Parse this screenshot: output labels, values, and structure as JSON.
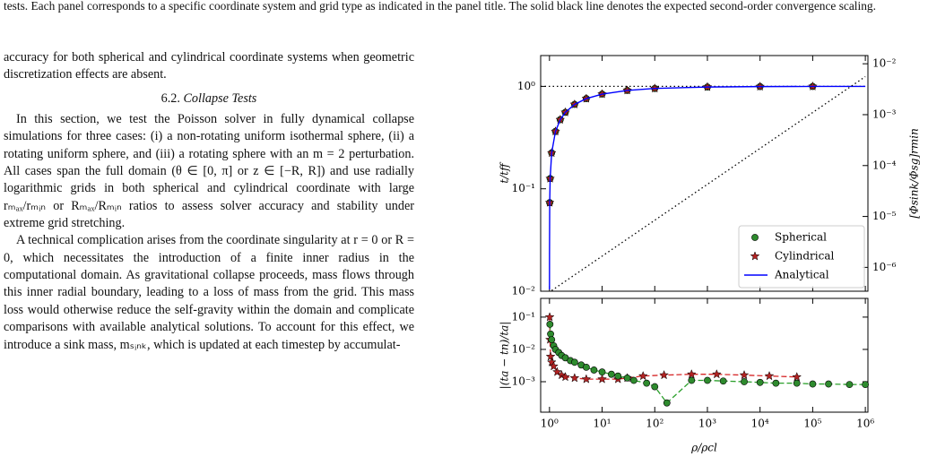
{
  "caption": "tests. Each panel corresponds to a specific coordinate system and grid type as indicated in the panel title. The solid black line denotes the expected second-order convergence scaling.",
  "body": {
    "paragraph_1": "accuracy for both spherical and cylindrical coordinate systems when geometric discretization effects are absent.",
    "heading_number": "6.2.",
    "heading_title": "Collapse Tests",
    "paragraph_2": "In this section, we test the Poisson solver in fully dynamical collapse simulations for three cases: (i) a non-rotating uniform isothermal sphere, (ii) a rotating uniform sphere, and (iii) a rotating sphere with an m = 2 perturbation. All cases span the full domain (θ ∈ [0, π] or z ∈ [−R, R]) and use radially logarithmic grids in both spherical and cylindrical coordinate with large rₘₐₓ/rₘᵢₙ or Rₘₐₓ/Rₘᵢₙ ratios to assess solver accuracy and stability under extreme grid stretching.",
    "paragraph_3": "A technical complication arises from the coordinate singularity at r = 0 or R = 0, which necessitates the introduction of a finite inner radius in the computational domain. As gravitational collapse proceeds, mass flows through this inner radial boundary, leading to a loss of mass from the grid. This mass loss would otherwise reduce the self-gravity within the domain and complicate comparisons with available analytical solutions. To account for this effect, we introduce a sink mass, mₛᵢₙₖ, which is updated at each timestep by accumulat-"
  },
  "chart_data": [
    {
      "type": "line",
      "xscale": "log",
      "yscale": "log",
      "y2scale": "log",
      "ylabel": "t/tff",
      "y2label": "[Φsink/Φsg]rmin",
      "xlim": [
        0.68,
        1120000
      ],
      "ylim": [
        0.01,
        2.0
      ],
      "y2lim": [
        3.4e-07,
        0.0145
      ],
      "xticks": [
        1,
        10,
        100,
        1000,
        10000,
        100000,
        1000000
      ],
      "show_xticklabels": false,
      "yticks": [
        {
          "value": 0.01,
          "label": "10⁻²"
        },
        {
          "value": 0.1,
          "label": "10⁻¹"
        },
        {
          "value": 1,
          "label": "10⁰"
        }
      ],
      "y2ticks": [
        {
          "value": 1e-06,
          "label": "10⁻⁶"
        },
        {
          "value": 1e-05,
          "label": "10⁻⁵"
        },
        {
          "value": 0.0001,
          "label": "10⁻⁴"
        },
        {
          "value": 0.001,
          "label": "10⁻³"
        },
        {
          "value": 0.01,
          "label": "10⁻²"
        }
      ],
      "hlines": [
        {
          "y": 1,
          "color": "#000000",
          "linestyle": "dotted"
        }
      ],
      "legend": "lower right",
      "series": [
        {
          "name": "Spherical",
          "color": "#2e8b2e",
          "marker": "circle",
          "x": [
            1.01,
            1.03,
            1.1,
            1.3,
            1.6,
            2,
            3,
            5,
            10,
            30,
            100,
            1000,
            10000,
            100000
          ],
          "values": [
            0.0732,
            0.1259,
            0.224,
            0.3631,
            0.473,
            0.5578,
            0.6672,
            0.7594,
            0.8405,
            0.9131,
            0.9546,
            0.9857,
            0.9957,
            0.9987
          ]
        },
        {
          "name": "Cylindrical",
          "color": "#b22222",
          "marker": "star",
          "x": [
            1.01,
            1.03,
            1.1,
            1.3,
            1.6,
            2,
            3,
            5,
            10,
            30,
            100,
            1000,
            10000,
            100000
          ],
          "values": [
            0.0732,
            0.1259,
            0.224,
            0.3631,
            0.473,
            0.5578,
            0.6672,
            0.7594,
            0.8405,
            0.9131,
            0.9546,
            0.9857,
            0.9957,
            0.9987
          ]
        },
        {
          "name": "Analytical",
          "color": "#0000ff",
          "linestyle": "solid",
          "x": [
            1.0002,
            1.001,
            1.01,
            1.03,
            1.1,
            1.3,
            1.6,
            2,
            3,
            5,
            10,
            30,
            100,
            1000,
            10000,
            100000,
            1000000
          ],
          "values": [
            0.0104,
            0.02325,
            0.0732,
            0.1259,
            0.224,
            0.3631,
            0.473,
            0.5578,
            0.6672,
            0.7594,
            0.8405,
            0.9131,
            0.9546,
            0.9857,
            0.9957,
            0.9987,
            0.99955
          ]
        },
        {
          "color": "#000000",
          "linestyle": "dotted",
          "axis": "y2",
          "x": [
            1.1,
            1000000
          ],
          "values": [
            3.5e-07,
            0.0056
          ]
        }
      ]
    },
    {
      "type": "line",
      "xscale": "log",
      "yscale": "log",
      "ylabel": "|(ta − tn)/ta|",
      "xlabel": "ρ/ρcl",
      "xlim": [
        0.68,
        1120000
      ],
      "ylim": [
        0.000114,
        0.38
      ],
      "xticks": [
        {
          "value": 1,
          "label": "10⁰"
        },
        {
          "value": 10,
          "label": "10¹"
        },
        {
          "value": 100,
          "label": "10²"
        },
        {
          "value": 1000,
          "label": "10³"
        },
        {
          "value": 10000,
          "label": "10⁴"
        },
        {
          "value": 100000,
          "label": "10⁵"
        },
        {
          "value": 1000000,
          "label": "10⁶"
        }
      ],
      "yticks": [
        {
          "value": 0.001,
          "label": "10⁻³"
        },
        {
          "value": 0.01,
          "label": "10⁻²"
        },
        {
          "value": 0.1,
          "label": "10⁻¹"
        }
      ],
      "series": [
        {
          "name": "Cylindrical",
          "color": "#b22222",
          "line_color": "#d62728",
          "marker": "star",
          "linestyle": "dashed",
          "x": [
            1.01,
            1.02,
            1.05,
            1.1,
            1.2,
            1.4,
            1.7,
            2,
            3,
            5,
            10,
            20,
            30,
            60,
            150,
            500,
            1500,
            5000,
            15000,
            50000
          ],
          "values": [
            0.1,
            0.02,
            0.006,
            0.004,
            0.003,
            0.002,
            0.0016,
            0.0014,
            0.0013,
            0.0012,
            0.0012,
            0.0012,
            0.0013,
            0.0015,
            0.0016,
            0.0017,
            0.0017,
            0.0016,
            0.0015,
            0.0014
          ]
        },
        {
          "name": "Spherical",
          "color": "#2e8b2e",
          "line_color": "#2ca02c",
          "marker": "circle",
          "linestyle": "dashed",
          "x": [
            1.02,
            1.05,
            1.1,
            1.2,
            1.3,
            1.5,
            1.7,
            2,
            2.5,
            3,
            4,
            5,
            7,
            10,
            15,
            20,
            30,
            40,
            70,
            100,
            170,
            500,
            1000,
            2000,
            5000,
            10000,
            20000,
            50000,
            100000,
            200000,
            500000,
            1000000
          ],
          "values": [
            0.06,
            0.03,
            0.02,
            0.013,
            0.01,
            0.008,
            0.0065,
            0.0055,
            0.0045,
            0.004,
            0.0033,
            0.0028,
            0.0023,
            0.002,
            0.0017,
            0.0015,
            0.0013,
            0.0011,
            0.0009,
            0.0007,
            0.00022,
            0.0011,
            0.0011,
            0.00105,
            0.001,
            0.00095,
            0.0009,
            0.0009,
            0.00085,
            0.00085,
            0.00082,
            0.00082
          ]
        }
      ]
    }
  ]
}
